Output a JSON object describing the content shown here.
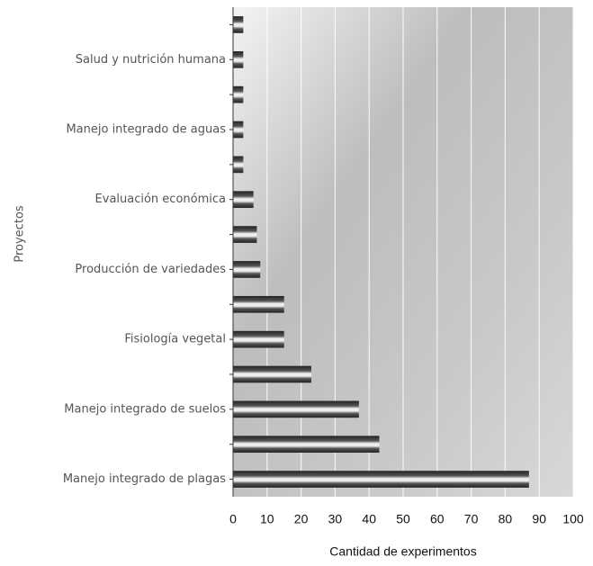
{
  "chart_data": {
    "type": "bar",
    "orientation": "horizontal",
    "x_label": "Cantidad de experimentos",
    "y_label": "Proyectos",
    "categories": [
      null,
      "Salud y nutrición humana",
      null,
      "Manejo integrado de aguas",
      null,
      "Evaluación económica",
      null,
      "Producción de variedades",
      null,
      "Fisiología vegetal",
      null,
      "Manejo integrado de suelos",
      null,
      "Manejo integrado de plagas"
    ],
    "values": [
      3,
      3,
      3,
      3,
      3,
      6,
      7,
      8,
      15,
      15,
      23,
      37,
      43,
      87
    ],
    "color": "#333333",
    "xlim": [
      0,
      100
    ],
    "xticks": [
      0,
      10,
      20,
      30,
      40,
      50,
      60,
      70,
      80,
      90,
      100
    ],
    "grid": true
  }
}
